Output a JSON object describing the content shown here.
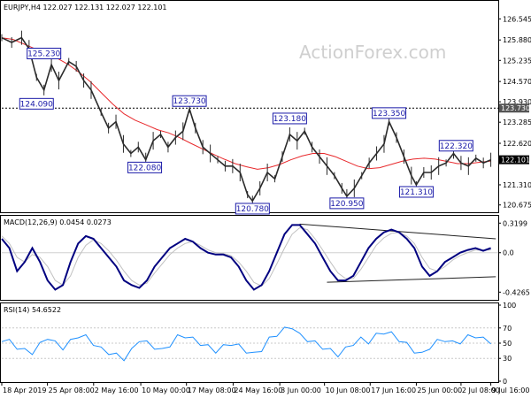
{
  "chart_data": [
    {
      "type": "candlestick",
      "title": "EURJPY,H4  122.027 122.131 122.027 122.101",
      "watermark": "ActionForex.com",
      "ylim": [
        120.5,
        126.75
      ],
      "y_ticks": [
        "126.545",
        "125.880",
        "125.235",
        "124.570",
        "123.930",
        "123.730",
        "123.285",
        "122.620",
        "122.101",
        "121.310",
        "120.675"
      ],
      "y_tick_values": [
        126.545,
        125.88,
        125.235,
        124.57,
        123.93,
        123.73,
        123.285,
        122.62,
        122.101,
        121.31,
        120.675
      ],
      "x_ticks": [
        "18 Apr 2019",
        "25 Apr 08:00",
        "2 May 16:00",
        "10 May 00:00",
        "17 May 08:00",
        "24 May 16:00",
        "3 Jun 00:00",
        "10 Jun 08:00",
        "17 Jun 16:00",
        "25 Jun 00:00",
        "2 Jul 08:00",
        "9 Jul 16:00"
      ],
      "x_tick_positions": [
        0.0,
        0.092,
        0.185,
        0.28,
        0.372,
        0.466,
        0.56,
        0.65,
        0.742,
        0.835,
        0.925,
        0.985
      ],
      "last_price": "122.101",
      "horizontal_level": {
        "label": "123.730",
        "value": 123.73
      },
      "moving_average": [
        125.95,
        125.9,
        125.75,
        125.6,
        125.45,
        125.3,
        125.1,
        124.85,
        124.55,
        124.2,
        123.85,
        123.55,
        123.35,
        123.2,
        123.05,
        122.95,
        122.8,
        122.62,
        122.45,
        122.28,
        122.12,
        121.98,
        121.88,
        121.8,
        121.85,
        121.95,
        122.1,
        122.22,
        122.3,
        122.3,
        122.2,
        122.05,
        121.9,
        121.82,
        121.85,
        121.95,
        122.05,
        122.12,
        122.15,
        122.12,
        122.05,
        121.98,
        121.98,
        122.02,
        122.06
      ],
      "annotations": [
        {
          "label": "125.230",
          "x": 0.085,
          "value": 125.23,
          "pos": "above"
        },
        {
          "label": "124.090",
          "x": 0.07,
          "value": 124.09,
          "pos": "below"
        },
        {
          "label": "123.730",
          "x": 0.378,
          "value": 123.73,
          "pos": "above"
        },
        {
          "label": "122.080",
          "x": 0.288,
          "value": 122.08,
          "pos": "below"
        },
        {
          "label": "123.180",
          "x": 0.58,
          "value": 123.18,
          "pos": "above"
        },
        {
          "label": "120.780",
          "x": 0.505,
          "value": 120.78,
          "pos": "below"
        },
        {
          "label": "120.950",
          "x": 0.695,
          "value": 120.95,
          "pos": "below"
        },
        {
          "label": "123.350",
          "x": 0.78,
          "value": 123.35,
          "pos": "above"
        },
        {
          "label": "122.320",
          "x": 0.915,
          "value": 122.32,
          "pos": "above"
        },
        {
          "label": "121.310",
          "x": 0.835,
          "value": 121.31,
          "pos": "below"
        }
      ],
      "price_path": [
        [
          0.0,
          125.95
        ],
        [
          0.02,
          125.8
        ],
        [
          0.04,
          125.95
        ],
        [
          0.055,
          125.6
        ],
        [
          0.07,
          124.7
        ],
        [
          0.085,
          124.3
        ],
        [
          0.1,
          125.1
        ],
        [
          0.115,
          124.6
        ],
        [
          0.135,
          125.2
        ],
        [
          0.15,
          125.05
        ],
        [
          0.165,
          124.6
        ],
        [
          0.18,
          124.3
        ],
        [
          0.2,
          123.6
        ],
        [
          0.215,
          123.1
        ],
        [
          0.23,
          123.3
        ],
        [
          0.245,
          122.6
        ],
        [
          0.26,
          122.3
        ],
        [
          0.275,
          122.5
        ],
        [
          0.29,
          122.1
        ],
        [
          0.305,
          122.7
        ],
        [
          0.32,
          122.9
        ],
        [
          0.335,
          122.5
        ],
        [
          0.35,
          122.8
        ],
        [
          0.365,
          123.0
        ],
        [
          0.378,
          123.7
        ],
        [
          0.39,
          123.1
        ],
        [
          0.405,
          122.5
        ],
        [
          0.42,
          122.3
        ],
        [
          0.435,
          122.1
        ],
        [
          0.45,
          121.9
        ],
        [
          0.465,
          121.9
        ],
        [
          0.48,
          121.7
        ],
        [
          0.495,
          121.0
        ],
        [
          0.505,
          120.8
        ],
        [
          0.52,
          121.2
        ],
        [
          0.535,
          121.7
        ],
        [
          0.55,
          121.5
        ],
        [
          0.565,
          122.2
        ],
        [
          0.58,
          122.9
        ],
        [
          0.595,
          122.7
        ],
        [
          0.61,
          123.0
        ],
        [
          0.625,
          122.5
        ],
        [
          0.64,
          122.2
        ],
        [
          0.655,
          121.9
        ],
        [
          0.67,
          121.6
        ],
        [
          0.685,
          121.2
        ],
        [
          0.695,
          120.95
        ],
        [
          0.71,
          121.2
        ],
        [
          0.725,
          121.6
        ],
        [
          0.74,
          122.0
        ],
        [
          0.755,
          122.3
        ],
        [
          0.77,
          122.6
        ],
        [
          0.78,
          123.3
        ],
        [
          0.795,
          122.8
        ],
        [
          0.81,
          122.2
        ],
        [
          0.825,
          121.6
        ],
        [
          0.835,
          121.31
        ],
        [
          0.85,
          121.7
        ],
        [
          0.865,
          121.7
        ],
        [
          0.88,
          121.9
        ],
        [
          0.895,
          122.0
        ],
        [
          0.91,
          122.3
        ],
        [
          0.925,
          122.0
        ],
        [
          0.94,
          121.9
        ],
        [
          0.955,
          122.15
        ],
        [
          0.97,
          122.0
        ],
        [
          0.985,
          122.1
        ]
      ]
    },
    {
      "type": "line",
      "title": "MACD(12,26,9) 0.0454 0.0273",
      "ylim": [
        -0.5,
        0.38
      ],
      "y_ticks": [
        "0.3199",
        "0.0",
        "-0.4265"
      ],
      "y_tick_values": [
        0.3199,
        0.0,
        -0.4265
      ],
      "series": [
        {
          "role": "macd",
          "color": "#000080",
          "values": [
            0.15,
            0.05,
            -0.2,
            -0.1,
            0.05,
            -0.1,
            -0.3,
            -0.4,
            -0.35,
            -0.1,
            0.1,
            0.18,
            0.15,
            0.05,
            -0.05,
            -0.15,
            -0.3,
            -0.35,
            -0.38,
            -0.3,
            -0.15,
            -0.05,
            0.05,
            0.1,
            0.15,
            0.12,
            0.05,
            0.0,
            -0.02,
            -0.02,
            -0.05,
            -0.15,
            -0.3,
            -0.4,
            -0.35,
            -0.2,
            0.0,
            0.2,
            0.3,
            0.3,
            0.2,
            0.1,
            -0.05,
            -0.2,
            -0.3,
            -0.3,
            -0.25,
            -0.1,
            0.05,
            0.15,
            0.22,
            0.25,
            0.22,
            0.15,
            0.05,
            -0.15,
            -0.25,
            -0.2,
            -0.1,
            -0.05,
            0.0,
            0.03,
            0.05,
            0.02,
            0.05
          ]
        },
        {
          "role": "signal",
          "color": "#c0c0c0",
          "values": [
            0.18,
            0.1,
            -0.05,
            -0.1,
            -0.02,
            -0.05,
            -0.15,
            -0.3,
            -0.35,
            -0.25,
            -0.05,
            0.08,
            0.14,
            0.1,
            0.02,
            -0.08,
            -0.2,
            -0.3,
            -0.35,
            -0.33,
            -0.22,
            -0.12,
            -0.02,
            0.05,
            0.1,
            0.12,
            0.08,
            0.03,
            0.0,
            -0.01,
            -0.03,
            -0.1,
            -0.2,
            -0.32,
            -0.36,
            -0.28,
            -0.12,
            0.05,
            0.2,
            0.27,
            0.25,
            0.15,
            0.03,
            -0.1,
            -0.22,
            -0.28,
            -0.28,
            -0.18,
            -0.05,
            0.08,
            0.16,
            0.21,
            0.22,
            0.18,
            0.1,
            -0.05,
            -0.17,
            -0.2,
            -0.15,
            -0.08,
            -0.03,
            0.0,
            0.03,
            0.03,
            0.03
          ]
        }
      ]
    },
    {
      "type": "line",
      "title": "RSI(14) 54.6522",
      "ylim": [
        0,
        100
      ],
      "y_ticks": [
        "100",
        "70",
        "50",
        "30",
        "0"
      ],
      "y_tick_values": [
        100,
        70,
        50,
        30,
        0
      ],
      "series": [
        {
          "role": "rsi",
          "color": "#1e90ff",
          "values": [
            55,
            52,
            45,
            40,
            38,
            48,
            58,
            50,
            44,
            52,
            60,
            58,
            50,
            42,
            38,
            34,
            30,
            40,
            55,
            50,
            45,
            40,
            48,
            58,
            60,
            55,
            50,
            45,
            40,
            45,
            50,
            46,
            40,
            35,
            42,
            55,
            62,
            68,
            72,
            60,
            55,
            50,
            45,
            40,
            35,
            42,
            50,
            55,
            52,
            60,
            65,
            62,
            55,
            48,
            40,
            35,
            45,
            52,
            55,
            50,
            52,
            58,
            60,
            55,
            52
          ]
        }
      ]
    }
  ]
}
